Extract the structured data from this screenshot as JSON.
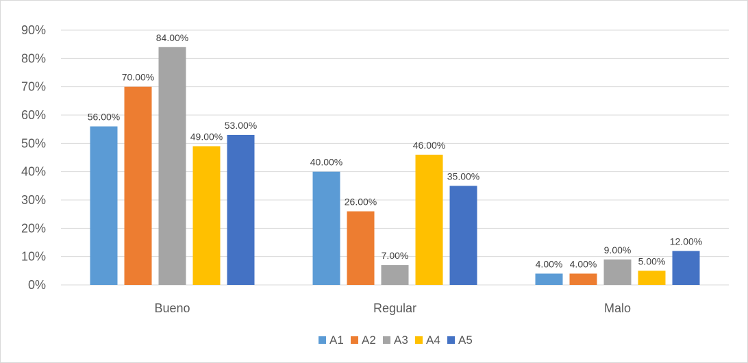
{
  "chart_data": {
    "type": "bar",
    "title": "",
    "xlabel": "",
    "ylabel": "",
    "categories": [
      "Bueno",
      "Regular",
      "Malo"
    ],
    "ylim": [
      0,
      90
    ],
    "yticks": [
      0,
      10,
      20,
      30,
      40,
      50,
      60,
      70,
      80,
      90
    ],
    "ytick_labels": [
      "0%",
      "10%",
      "20%",
      "30%",
      "40%",
      "50%",
      "60%",
      "70%",
      "80%",
      "90%"
    ],
    "grid": true,
    "legend_position": "bottom",
    "series": [
      {
        "name": "A1",
        "color": "#5b9bd5",
        "values": [
          56,
          40,
          4
        ],
        "labels": [
          "56.00%",
          "40.00%",
          "4.00%"
        ]
      },
      {
        "name": "A2",
        "color": "#ed7d31",
        "values": [
          70,
          26,
          4
        ],
        "labels": [
          "70.00%",
          "26.00%",
          "4.00%"
        ]
      },
      {
        "name": "A3",
        "color": "#a5a5a5",
        "values": [
          84,
          7,
          9
        ],
        "labels": [
          "84.00%",
          "7.00%",
          "9.00%"
        ]
      },
      {
        "name": "A4",
        "color": "#ffc000",
        "values": [
          49,
          46,
          5
        ],
        "labels": [
          "49.00%",
          "46.00%",
          "5.00%"
        ]
      },
      {
        "name": "A5",
        "color": "#4472c4",
        "values": [
          53,
          35,
          12
        ],
        "labels": [
          "53.00%",
          "35.00%",
          "12.00%"
        ]
      }
    ]
  }
}
